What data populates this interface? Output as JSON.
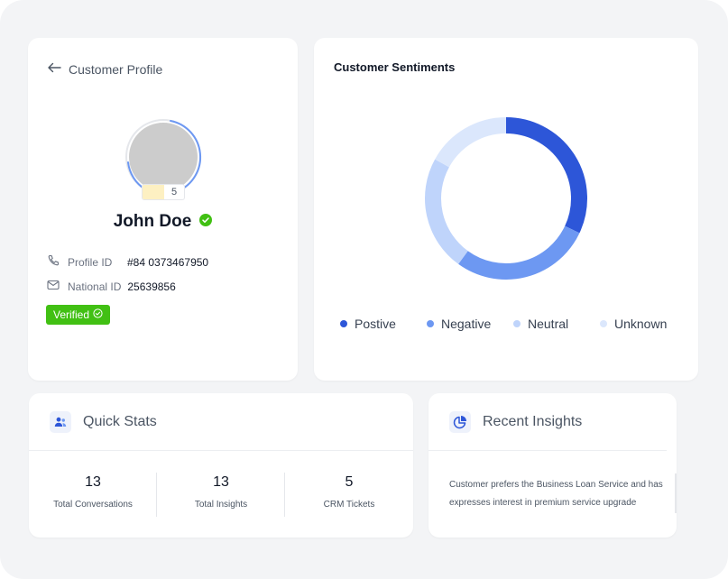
{
  "profile": {
    "back_title": "Customer Profile",
    "level": "5",
    "name": "John Doe",
    "profile_id_label": "Profile ID",
    "profile_id_value": "#84 0373467950",
    "national_id_label": "National ID",
    "national_id_value": "25639856",
    "verified_label": "Verified"
  },
  "sentiments": {
    "title": "Customer Sentiments",
    "chart_data": {
      "type": "pie",
      "categories": [
        "Postive",
        "Negative",
        "Neutral",
        "Unknown"
      ],
      "values": [
        32,
        28,
        23,
        17
      ],
      "colors": [
        "#2d56d8",
        "#6d98f2",
        "#bfd4fb",
        "#dbe7fc"
      ],
      "donut": true,
      "legend": "bottom"
    }
  },
  "quick_stats": {
    "title": "Quick Stats",
    "items": [
      {
        "value": "13",
        "label": "Total Conversations"
      },
      {
        "value": "13",
        "label": "Total Insights"
      },
      {
        "value": "5",
        "label": "CRM Tickets"
      }
    ]
  },
  "insights": {
    "title": "Recent Insights",
    "text": "Customer prefers the Business Loan Service and has expresses interest in premium service upgrade"
  },
  "colors": {
    "accent": "#2d56d8",
    "verified": "#41c013",
    "background": "#f3f4f6"
  }
}
